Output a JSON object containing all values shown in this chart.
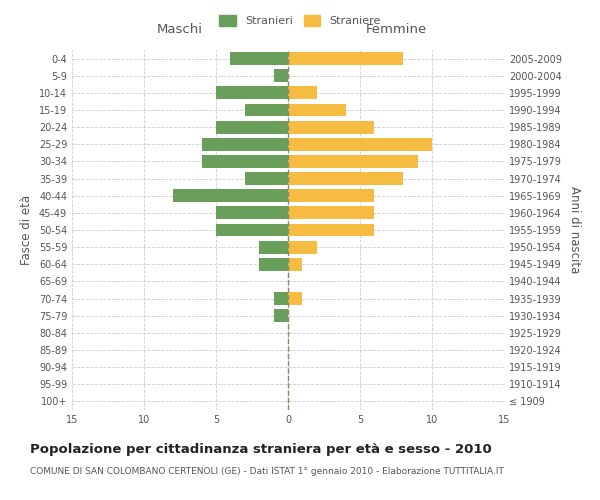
{
  "age_groups": [
    "100+",
    "95-99",
    "90-94",
    "85-89",
    "80-84",
    "75-79",
    "70-74",
    "65-69",
    "60-64",
    "55-59",
    "50-54",
    "45-49",
    "40-44",
    "35-39",
    "30-34",
    "25-29",
    "20-24",
    "15-19",
    "10-14",
    "5-9",
    "0-4"
  ],
  "birth_years": [
    "≤ 1909",
    "1910-1914",
    "1915-1919",
    "1920-1924",
    "1925-1929",
    "1930-1934",
    "1935-1939",
    "1940-1944",
    "1945-1949",
    "1950-1954",
    "1955-1959",
    "1960-1964",
    "1965-1969",
    "1970-1974",
    "1975-1979",
    "1980-1984",
    "1985-1989",
    "1990-1994",
    "1995-1999",
    "2000-2004",
    "2005-2009"
  ],
  "males": [
    0,
    0,
    0,
    0,
    0,
    1,
    1,
    0,
    2,
    2,
    5,
    5,
    8,
    3,
    6,
    6,
    5,
    3,
    5,
    1,
    4
  ],
  "females": [
    0,
    0,
    0,
    0,
    0,
    0,
    1,
    0,
    1,
    2,
    6,
    6,
    6,
    8,
    9,
    10,
    6,
    4,
    2,
    0,
    8
  ],
  "male_color": "#6a9e5b",
  "female_color": "#f5bc41",
  "bar_height": 0.75,
  "xlim": 15,
  "title": "Popolazione per cittadinanza straniera per età e sesso - 2010",
  "subtitle": "COMUNE DI SAN COLOMBANO CERTENOLI (GE) - Dati ISTAT 1° gennaio 2010 - Elaborazione TUTTITALIA.IT",
  "ylabel_left": "Fasce di età",
  "ylabel_right": "Anni di nascita",
  "xlabel_left": "Maschi",
  "xlabel_right": "Femmine",
  "legend_stranieri": "Stranieri",
  "legend_straniere": "Straniere",
  "bg_color": "#ffffff",
  "grid_color": "#cccccc",
  "text_color": "#555555",
  "title_fontsize": 9.5,
  "subtitle_fontsize": 6.5,
  "axis_label_fontsize": 8.5,
  "tick_fontsize": 7
}
